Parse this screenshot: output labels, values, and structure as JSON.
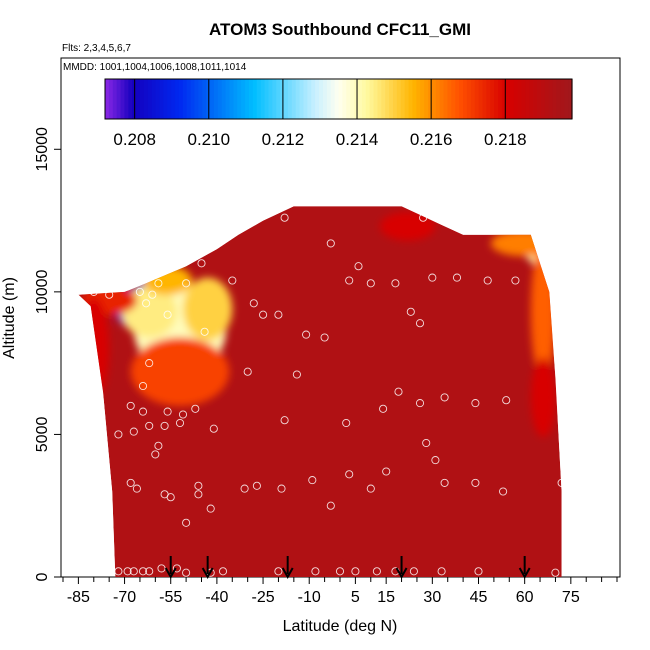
{
  "chart_data": {
    "type": "heatmap",
    "title": "ATOM3 Southbound CFC11_GMI",
    "subtitle_flights": "Flts: 2,3,4,5,6,7",
    "subtitle_dates": "MMDD: 1001,1004,1006,1008,1011,1014",
    "xlabel": "Latitude (deg N)",
    "ylabel": "Altitude (m)",
    "xlim": [
      -90,
      90
    ],
    "ylim": [
      0,
      17500
    ],
    "x_ticks": [
      -85,
      -70,
      -55,
      -40,
      -25,
      -10,
      5,
      15,
      30,
      45,
      60,
      75
    ],
    "x_tick_labels": [
      "-85",
      "-70",
      "-55",
      "-40",
      "-25",
      "-10",
      "5",
      "15",
      "30",
      "45",
      "60",
      "75"
    ],
    "y_ticks": [
      0,
      5000,
      10000,
      15000
    ],
    "y_tick_labels": [
      "0",
      "5000",
      "10000",
      "15000"
    ],
    "colorbar": {
      "range": [
        0.2072,
        0.2198
      ],
      "ticks": [
        0.208,
        0.21,
        0.212,
        0.214,
        0.216,
        0.218
      ],
      "tick_labels": [
        "0.208",
        "0.210",
        "0.212",
        "0.214",
        "0.216",
        "0.218"
      ]
    },
    "background_value": 0.2193,
    "field_outline": [
      [
        -73,
        0
      ],
      [
        -74,
        3000
      ],
      [
        -77,
        6500
      ],
      [
        -81,
        9500
      ],
      [
        -85,
        9900
      ],
      [
        -70,
        10000
      ],
      [
        -63,
        10300
      ],
      [
        -50,
        10900
      ],
      [
        -40,
        11500
      ],
      [
        -33,
        12000
      ],
      [
        -25,
        12500
      ],
      [
        -15,
        13000
      ],
      [
        -10,
        13000
      ],
      [
        20,
        13000
      ],
      [
        30,
        12500
      ],
      [
        40,
        12000
      ],
      [
        62,
        12000
      ],
      [
        68,
        10000
      ],
      [
        70,
        7000
      ],
      [
        72,
        3000
      ],
      [
        72,
        0
      ]
    ],
    "anomalies": [
      {
        "x": -68,
        "y": 9450,
        "rx": 5,
        "ry": 700,
        "value": 0.2075
      },
      {
        "x": -62,
        "y": 9900,
        "rx": 5,
        "ry": 600,
        "value": 0.21
      },
      {
        "x": -52,
        "y": 8700,
        "rx": 15,
        "ry": 1600,
        "value": 0.214
      },
      {
        "x": -62,
        "y": 9300,
        "rx": 9,
        "ry": 900,
        "value": 0.2145
      },
      {
        "x": -43,
        "y": 9400,
        "rx": 8,
        "ry": 1100,
        "value": 0.215
      },
      {
        "x": -56,
        "y": 10400,
        "rx": 8,
        "ry": 500,
        "value": 0.2155
      },
      {
        "x": -75,
        "y": 9700,
        "rx": 9,
        "ry": 500,
        "value": 0.2175
      },
      {
        "x": -52,
        "y": 7200,
        "rx": 16,
        "ry": 1200,
        "value": 0.217
      },
      {
        "x": 66,
        "y": 11500,
        "rx": 6,
        "ry": 600,
        "value": 0.2142
      },
      {
        "x": 60,
        "y": 11700,
        "rx": 11,
        "ry": 450,
        "value": 0.2162
      },
      {
        "x": 66,
        "y": 9300,
        "rx": 4,
        "ry": 2400,
        "value": 0.2166
      },
      {
        "x": 66,
        "y": 6300,
        "rx": 4,
        "ry": 1400,
        "value": 0.218
      },
      {
        "x": 22,
        "y": 12300,
        "rx": 9,
        "ry": 500,
        "value": 0.218
      },
      {
        "x": -80,
        "y": 8000,
        "rx": 5,
        "ry": 1800,
        "value": 0.218
      }
    ],
    "observations": [
      [
        -72,
        200
      ],
      [
        -69,
        200
      ],
      [
        -67,
        200
      ],
      [
        -64,
        200
      ],
      [
        -62,
        200
      ],
      [
        -58,
        300
      ],
      [
        -53,
        300
      ],
      [
        -50,
        150
      ],
      [
        -42,
        150
      ],
      [
        -38,
        200
      ],
      [
        -20,
        200
      ],
      [
        -8,
        200
      ],
      [
        0,
        200
      ],
      [
        5,
        200
      ],
      [
        12,
        200
      ],
      [
        18,
        200
      ],
      [
        24,
        200
      ],
      [
        33,
        200
      ],
      [
        45,
        200
      ],
      [
        70,
        150
      ],
      [
        -72,
        5000
      ],
      [
        -68,
        3300
      ],
      [
        -67,
        5100
      ],
      [
        -66,
        3100
      ],
      [
        -64,
        5800
      ],
      [
        -62,
        5300
      ],
      [
        -59,
        4600
      ],
      [
        -60,
        4300
      ],
      [
        -57,
        5300
      ],
      [
        -57,
        2900
      ],
      [
        -56,
        5800
      ],
      [
        -55,
        2800
      ],
      [
        -52,
        5400
      ],
      [
        -51,
        5700
      ],
      [
        -50,
        1900
      ],
      [
        -47,
        5900
      ],
      [
        -46,
        3200
      ],
      [
        -46,
        2900
      ],
      [
        -41,
        5200
      ],
      [
        -42,
        2400
      ],
      [
        -31,
        3100
      ],
      [
        -27,
        3200
      ],
      [
        -18,
        5500
      ],
      [
        -19,
        3100
      ],
      [
        -9,
        3400
      ],
      [
        -3,
        2500
      ],
      [
        2,
        5400
      ],
      [
        3,
        3600
      ],
      [
        10,
        3100
      ],
      [
        14,
        5900
      ],
      [
        15,
        3700
      ],
      [
        19,
        6500
      ],
      [
        26,
        6100
      ],
      [
        28,
        4700
      ],
      [
        31,
        4100
      ],
      [
        34,
        6300
      ],
      [
        34,
        3300
      ],
      [
        44,
        6100
      ],
      [
        44,
        3300
      ],
      [
        54,
        6200
      ],
      [
        53,
        3000
      ],
      [
        72,
        3300
      ],
      [
        -68,
        6000
      ],
      [
        -64,
        6700
      ],
      [
        -62,
        7500
      ],
      [
        -61,
        9900
      ],
      [
        -59,
        10300
      ],
      [
        -56,
        9200
      ],
      [
        -60,
        10900
      ],
      [
        -50,
        10300
      ],
      [
        -45,
        11000
      ],
      [
        -44,
        8600
      ],
      [
        -35,
        10400
      ],
      [
        -28,
        9600
      ],
      [
        -25,
        9200
      ],
      [
        -20,
        9200
      ],
      [
        -14,
        7100
      ],
      [
        -11,
        8500
      ],
      [
        -5,
        8400
      ],
      [
        -3,
        11700
      ],
      [
        3,
        10400
      ],
      [
        6,
        10900
      ],
      [
        10,
        10300
      ],
      [
        18,
        10300
      ],
      [
        23,
        9300
      ],
      [
        26,
        8900
      ],
      [
        30,
        10500
      ],
      [
        38,
        10500
      ],
      [
        48,
        10400
      ],
      [
        57,
        10400
      ],
      [
        -30,
        7200
      ],
      [
        -18,
        12600
      ],
      [
        27,
        12600
      ],
      [
        -80,
        10000
      ],
      [
        -75,
        9900
      ],
      [
        -65,
        10000
      ],
      [
        -63,
        9600
      ]
    ],
    "flight_arrows_lat": [
      -55,
      -43,
      -17,
      20,
      60
    ]
  }
}
